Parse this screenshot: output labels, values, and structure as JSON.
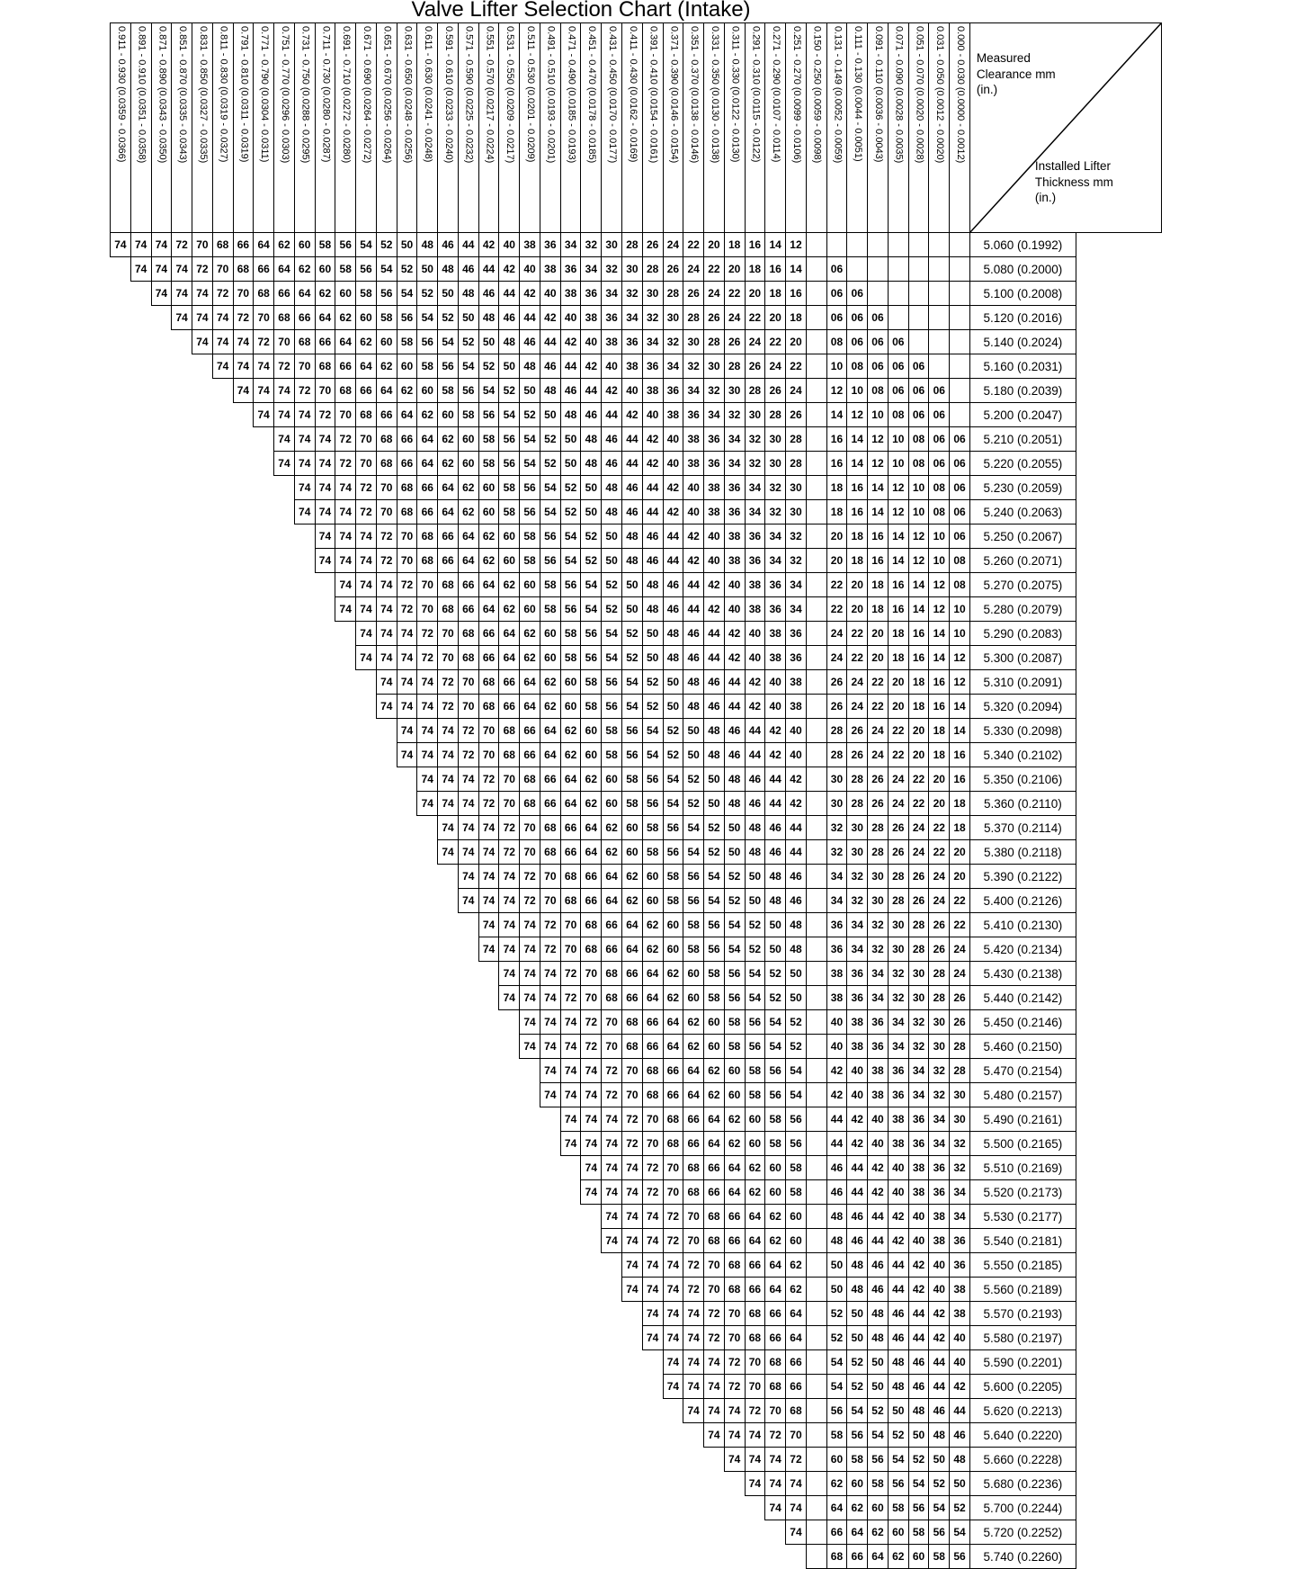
{
  "chart_data": {
    "type": "table",
    "title": "Valve Lifter Selection Chart (Intake)",
    "corner_top_label": "Measured Clearance mm (in.)",
    "corner_bottom_label": "Installed Lifter Thickness mm (in.)",
    "clearance_columns": [
      "0.911 - 0.930 (0.0359 - 0.0366)",
      "0.891 - 0.910 (0.0351 - 0.0358)",
      "0.871 - 0.890 (0.0343 - 0.0350)",
      "0.851 - 0.870 (0.0335 - 0.0343)",
      "0.831 - 0.850 (0.0327 - 0.0335)",
      "0.811 - 0.830 (0.0319 - 0.0327)",
      "0.791 - 0.810 (0.0311 - 0.0319)",
      "0.771 - 0.790 (0.0304 - 0.0311)",
      "0.751 - 0.770 (0.0296 - 0.0303)",
      "0.731 - 0.750 (0.0288 - 0.0295)",
      "0.711 - 0.730 (0.0280 - 0.0287)",
      "0.691 - 0.710 (0.0272 - 0.0280)",
      "0.671 - 0.690 (0.0264 - 0.0272)",
      "0.651 - 0.670 (0.0256 - 0.0264)",
      "0.631 - 0.650 (0.0248 - 0.0256)",
      "0.611 - 0.630 (0.0241 - 0.0248)",
      "0.591 - 0.610 (0.0233 - 0.0240)",
      "0.571 - 0.590 (0.0225 - 0.0232)",
      "0.551 - 0.570 (0.0217 - 0.0224)",
      "0.531 - 0.550 (0.0209 - 0.0217)",
      "0.511 - 0.530 (0.0201 - 0.0209)",
      "0.491 - 0.510 (0.0193 - 0.0201)",
      "0.471 - 0.490 (0.0185 - 0.0193)",
      "0.451 - 0.470 (0.0178 - 0.0185)",
      "0.431 - 0.450 (0.0170 - 0.0177)",
      "0.411 - 0.430 (0.0162 - 0.0169)",
      "0.391 - 0.410 (0.0154 - 0.0161)",
      "0.371 - 0.390 (0.0146 - 0.0154)",
      "0.351 - 0.370 (0.0138 - 0.0146)",
      "0.331 - 0.350 (0.0130 - 0.0138)",
      "0.311 - 0.330 (0.0122 - 0.0130)",
      "0.291 - 0.310 (0.0115 - 0.0122)",
      "0.271 - 0.290 (0.0107 - 0.0114)",
      "0.251 - 0.270 (0.0099 - 0.0106)",
      "0.150 - 0.250 (0.0059 - 0.0098)",
      "0.131 - 0.149 (0.0052 - 0.0059)",
      "0.111 - 0.130 (0.0044 - 0.0051)",
      "0.091 - 0.110 (0.0036 - 0.0043)",
      "0.071 - 0.090 (0.0028 - 0.0035)",
      "0.051 - 0.070 (0.0020 - 0.0028)",
      "0.031 - 0.050 (0.0012 - 0.0020)",
      "0.000 - 0.030 (0.0000 - 0.0012)"
    ],
    "rows": [
      {
        "t": "5.060 (0.1992)",
        "s": 1,
        "lv": "74 74 74 72 70 68 66 64 62 60 58 56 54 52 50 48 46 44 42 40 38 36 34 32 30 28 26 24 22 20 18 16 14 12",
        "rv": "- - - - - - -"
      },
      {
        "t": "5.080 (0.2000)",
        "s": 2,
        "lv": "74 74 74 72 70 68 66 64 62 60 58 56 54 52 50 48 46 44 42 40 38 36 34 32 30 28 26 24 22 20 18 16 14",
        "rv": "06 - - - - - -"
      },
      {
        "t": "5.100 (0.2008)",
        "s": 3,
        "lv": "74 74 74 72 70 68 66 64 62 60 58 56 54 52 50 48 46 44 42 40 38 36 34 32 30 28 26 24 22 20 18 16",
        "rv": "06 06 - - - - -"
      },
      {
        "t": "5.120 (0.2016)",
        "s": 4,
        "lv": "74 74 74 72 70 68 66 64 62 60 58 56 54 52 50 48 46 44 42 40 38 36 34 32 30 28 26 24 22 20 18",
        "rv": "06 06 06 - - - -"
      },
      {
        "t": "5.140 (0.2024)",
        "s": 5,
        "lv": "74 74 74 72 70 68 66 64 62 60 58 56 54 52 50 48 46 44 42 40 38 36 34 32 30 28 26 24 22 20",
        "rv": "08 06 06 06 - - -"
      },
      {
        "t": "5.160 (0.2031)",
        "s": 6,
        "lv": "74 74 74 72 70 68 66 64 62 60 58 56 54 52 50 48 46 44 42 40 38 36 34 32 30 28 26 24 22",
        "rv": "10 08 06 06 06 - -"
      },
      {
        "t": "5.180 (0.2039)",
        "s": 7,
        "lv": "74 74 74 72 70 68 66 64 62 60 58 56 54 52 50 48 46 44 42 40 38 36 34 32 30 28 26 24",
        "rv": "12 10 08 06 06 06 -"
      },
      {
        "t": "5.200 (0.2047)",
        "s": 8,
        "lv": "74 74 74 72 70 68 66 64 62 60 58 56 54 52 50 48 46 44 42 40 38 36 34 32 30 28 26",
        "rv": "14 12 10 08 06 06 -"
      },
      {
        "t": "5.210 (0.2051)",
        "s": 9,
        "lv": "74 74 74 72 70 68 66 64 62 60 58 56 54 52 50 48 46 44 42 40 38 36 34 32 30 28",
        "rv": "16 14 12 10 08 06 06"
      },
      {
        "t": "5.220 (0.2055)",
        "s": 9,
        "lv": "74 74 74 72 70 68 66 64 62 60 58 56 54 52 50 48 46 44 42 40 38 36 34 32 30 28",
        "rv": "16 14 12 10 08 06 06"
      },
      {
        "t": "5.230 (0.2059)",
        "s": 10,
        "lv": "74 74 74 72 70 68 66 64 62 60 58 56 54 52 50 48 46 44 42 40 38 36 34 32 30",
        "rv": "18 16 14 12 10 08 06"
      },
      {
        "t": "5.240 (0.2063)",
        "s": 10,
        "lv": "74 74 74 72 70 68 66 64 62 60 58 56 54 52 50 48 46 44 42 40 38 36 34 32 30",
        "rv": "18 16 14 12 10 08 06"
      },
      {
        "t": "5.250 (0.2067)",
        "s": 11,
        "lv": "74 74 74 72 70 68 66 64 62 60 58 56 54 52 50 48 46 44 42 40 38 36 34 32",
        "rv": "20 18 16 14 12 10 06"
      },
      {
        "t": "5.260 (0.2071)",
        "s": 11,
        "lv": "74 74 74 72 70 68 66 64 62 60 58 56 54 52 50 48 46 44 42 40 38 36 34 32",
        "rv": "20 18 16 14 12 10 08"
      },
      {
        "t": "5.270 (0.2075)",
        "s": 12,
        "lv": "74 74 74 72 70 68 66 64 62 60 58 56 54 52 50 48 46 44 42 40 38 36 34",
        "rv": "22 20 18 16 14 12 08"
      },
      {
        "t": "5.280 (0.2079)",
        "s": 12,
        "lv": "74 74 74 72 70 68 66 64 62 60 58 56 54 52 50 48 46 44 42 40 38 36 34",
        "rv": "22 20 18 16 14 12 10"
      },
      {
        "t": "5.290 (0.2083)",
        "s": 13,
        "lv": "74 74 74 72 70 68 66 64 62 60 58 56 54 52 50 48 46 44 42 40 38 36",
        "rv": "24 22 20 18 16 14 10"
      },
      {
        "t": "5.300 (0.2087)",
        "s": 13,
        "lv": "74 74 74 72 70 68 66 64 62 60 58 56 54 52 50 48 46 44 42 40 38 36",
        "rv": "24 22 20 18 16 14 12"
      },
      {
        "t": "5.310 (0.2091)",
        "s": 14,
        "lv": "74 74 74 72 70 68 66 64 62 60 58 56 54 52 50 48 46 44 42 40 38",
        "rv": "26 24 22 20 18 16 12"
      },
      {
        "t": "5.320 (0.2094)",
        "s": 14,
        "lv": "74 74 74 72 70 68 66 64 62 60 58 56 54 52 50 48 46 44 42 40 38",
        "rv": "26 24 22 20 18 16 14"
      },
      {
        "t": "5.330 (0.2098)",
        "s": 15,
        "lv": "74 74 74 72 70 68 66 64 62 60 58 56 54 52 50 48 46 44 42 40",
        "rv": "28 26 24 22 20 18 14"
      },
      {
        "t": "5.340 (0.2102)",
        "s": 15,
        "lv": "74 74 74 72 70 68 66 64 62 60 58 56 54 52 50 48 46 44 42 40",
        "rv": "28 26 24 22 20 18 16"
      },
      {
        "t": "5.350 (0.2106)",
        "s": 16,
        "lv": "74 74 74 72 70 68 66 64 62 60 58 56 54 52 50 48 46 44 42",
        "rv": "30 28 26 24 22 20 16"
      },
      {
        "t": "5.360 (0.2110)",
        "s": 16,
        "lv": "74 74 74 72 70 68 66 64 62 60 58 56 54 52 50 48 46 44 42",
        "rv": "30 28 26 24 22 20 18"
      },
      {
        "t": "5.370 (0.2114)",
        "s": 17,
        "lv": "74 74 74 72 70 68 66 64 62 60 58 56 54 52 50 48 46 44",
        "rv": "32 30 28 26 24 22 18"
      },
      {
        "t": "5.380 (0.2118)",
        "s": 17,
        "lv": "74 74 74 72 70 68 66 64 62 60 58 56 54 52 50 48 46 44",
        "rv": "32 30 28 26 24 22 20"
      },
      {
        "t": "5.390 (0.2122)",
        "s": 18,
        "lv": "74 74 74 72 70 68 66 64 62 60 58 56 54 52 50 48 46",
        "rv": "34 32 30 28 26 24 20"
      },
      {
        "t": "5.400 (0.2126)",
        "s": 18,
        "lv": "74 74 74 72 70 68 66 64 62 60 58 56 54 52 50 48 46",
        "rv": "34 32 30 28 26 24 22"
      },
      {
        "t": "5.410 (0.2130)",
        "s": 19,
        "lv": "74 74 74 72 70 68 66 64 62 60 58 56 54 52 50 48",
        "rv": "36 34 32 30 28 26 22"
      },
      {
        "t": "5.420 (0.2134)",
        "s": 19,
        "lv": "74 74 74 72 70 68 66 64 62 60 58 56 54 52 50 48",
        "rv": "36 34 32 30 28 26 24"
      },
      {
        "t": "5.430 (0.2138)",
        "s": 20,
        "lv": "74 74 74 72 70 68 66 64 62 60 58 56 54 52 50",
        "rv": "38 36 34 32 30 28 24"
      },
      {
        "t": "5.440 (0.2142)",
        "s": 20,
        "lv": "74 74 74 72 70 68 66 64 62 60 58 56 54 52 50",
        "rv": "38 36 34 32 30 28 26"
      },
      {
        "t": "5.450 (0.2146)",
        "s": 21,
        "lv": "74 74 74 72 70 68 66 64 62 60 58 56 54 52",
        "rv": "40 38 36 34 32 30 26"
      },
      {
        "t": "5.460 (0.2150)",
        "s": 21,
        "lv": "74 74 74 72 70 68 66 64 62 60 58 56 54 52",
        "rv": "40 38 36 34 32 30 28"
      },
      {
        "t": "5.470 (0.2154)",
        "s": 22,
        "lv": "74 74 74 72 70 68 66 64 62 60 58 56 54",
        "rv": "42 40 38 36 34 32 28"
      },
      {
        "t": "5.480 (0.2157)",
        "s": 22,
        "lv": "74 74 74 72 70 68 66 64 62 60 58 56 54",
        "rv": "42 40 38 36 34 32 30"
      },
      {
        "t": "5.490 (0.2161)",
        "s": 23,
        "lv": "74 74 74 72 70 68 66 64 62 60 58 56",
        "rv": "44 42 40 38 36 34 30"
      },
      {
        "t": "5.500 (0.2165)",
        "s": 23,
        "lv": "74 74 74 72 70 68 66 64 62 60 58 56",
        "rv": "44 42 40 38 36 34 32"
      },
      {
        "t": "5.510 (0.2169)",
        "s": 24,
        "lv": "74 74 74 72 70 68 66 64 62 60 58",
        "rv": "46 44 42 40 38 36 32"
      },
      {
        "t": "5.520 (0.2173)",
        "s": 24,
        "lv": "74 74 74 72 70 68 66 64 62 60 58",
        "rv": "46 44 42 40 38 36 34"
      },
      {
        "t": "5.530 (0.2177)",
        "s": 25,
        "lv": "74 74 74 72 70 68 66 64 62 60",
        "rv": "48 46 44 42 40 38 34"
      },
      {
        "t": "5.540 (0.2181)",
        "s": 25,
        "lv": "74 74 74 72 70 68 66 64 62 60",
        "rv": "48 46 44 42 40 38 36"
      },
      {
        "t": "5.550 (0.2185)",
        "s": 26,
        "lv": "74 74 74 72 70 68 66 64 62",
        "rv": "50 48 46 44 42 40 36"
      },
      {
        "t": "5.560 (0.2189)",
        "s": 26,
        "lv": "74 74 74 72 70 68 66 64 62",
        "rv": "50 48 46 44 42 40 38"
      },
      {
        "t": "5.570 (0.2193)",
        "s": 27,
        "lv": "74 74 74 72 70 68 66 64",
        "rv": "52 50 48 46 44 42 38"
      },
      {
        "t": "5.580 (0.2197)",
        "s": 27,
        "lv": "74 74 74 72 70 68 66 64",
        "rv": "52 50 48 46 44 42 40"
      },
      {
        "t": "5.590 (0.2201)",
        "s": 28,
        "lv": "74 74 74 72 70 68 66",
        "rv": "54 52 50 48 46 44 40"
      },
      {
        "t": "5.600 (0.2205)",
        "s": 28,
        "lv": "74 74 74 72 70 68 66",
        "rv": "54 52 50 48 46 44 42"
      },
      {
        "t": "5.620 (0.2213)",
        "s": 29,
        "lv": "74 74 74 72 70 68",
        "rv": "56 54 52 50 48 46 44"
      },
      {
        "t": "5.640 (0.2220)",
        "s": 30,
        "lv": "74 74 74 72 70",
        "rv": "58 56 54 52 50 48 46"
      },
      {
        "t": "5.660 (0.2228)",
        "s": 31,
        "lv": "74 74 74 72",
        "rv": "60 58 56 54 52 50 48"
      },
      {
        "t": "5.680 (0.2236)",
        "s": 32,
        "lv": "74 74 74",
        "rv": "62 60 58 56 54 52 50"
      },
      {
        "t": "5.700 (0.2244)",
        "s": 33,
        "lv": "74 74",
        "rv": "64 62 60 58 56 54 52"
      },
      {
        "t": "5.720 (0.2252)",
        "s": 34,
        "lv": "74",
        "rv": "66 64 62 60 58 56 54"
      },
      {
        "t": "5.740 (0.2260)",
        "s": 35,
        "lv": "",
        "rv": "68 66 64 62 60 58 56"
      }
    ]
  }
}
